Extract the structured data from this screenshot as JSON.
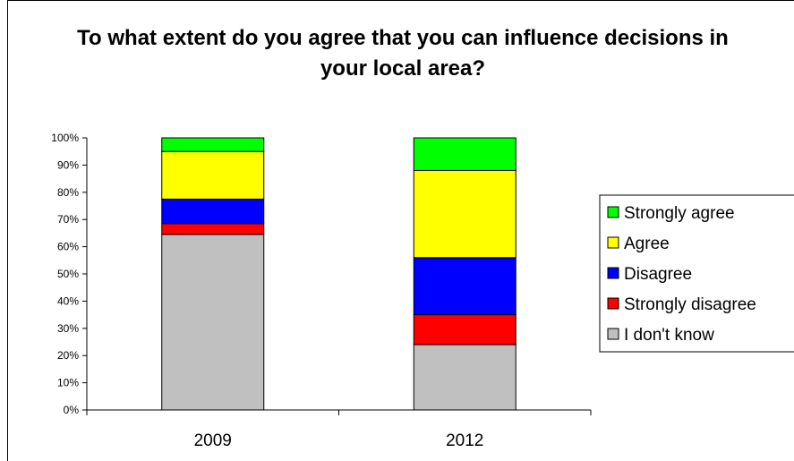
{
  "chart_data": {
    "type": "bar",
    "stacked": true,
    "title": "To what extent do you agree that you can influence decisions in your local area?",
    "categories": [
      "2009",
      "2012"
    ],
    "series": [
      {
        "name": "I don't know",
        "color": "#c0c0c0",
        "values": [
          64.5,
          24
        ]
      },
      {
        "name": "Strongly disagree",
        "color": "#ff0000",
        "values": [
          4,
          11
        ]
      },
      {
        "name": "Disagree",
        "color": "#0000ff",
        "values": [
          9,
          21
        ]
      },
      {
        "name": "Agree",
        "color": "#ffff00",
        "values": [
          17.5,
          32
        ]
      },
      {
        "name": "Strongly agree",
        "color": "#00ff00",
        "values": [
          5,
          12
        ]
      }
    ],
    "ylim": [
      0,
      100
    ],
    "yticks": [
      "0%",
      "10%",
      "20%",
      "30%",
      "40%",
      "50%",
      "60%",
      "70%",
      "80%",
      "90%",
      "100%"
    ],
    "grid": false,
    "legend_position": "right",
    "legend_order": [
      "Strongly agree",
      "Agree",
      "Disagree",
      "Strongly disagree",
      "I don't know"
    ]
  }
}
